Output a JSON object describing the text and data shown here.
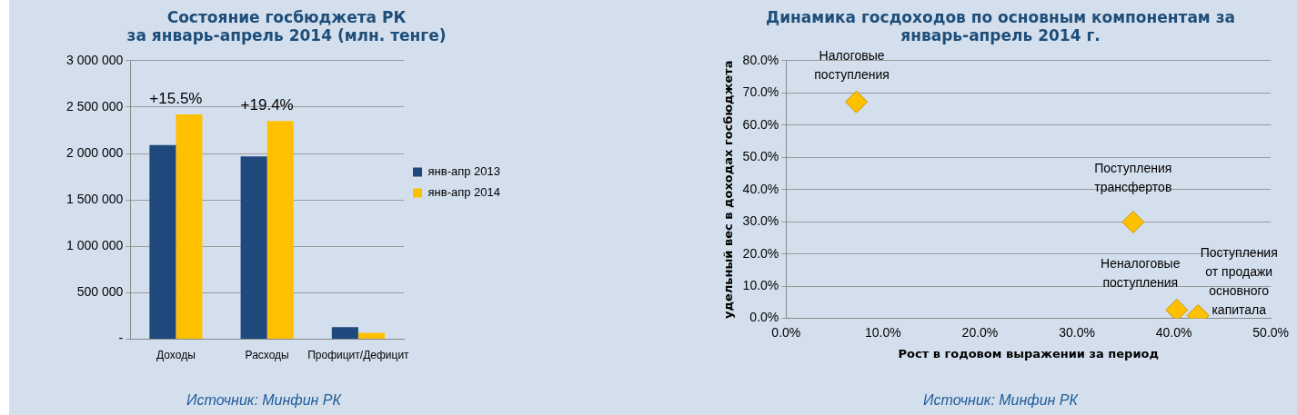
{
  "chart_data": [
    {
      "type": "bar",
      "title": "Состояние госбюджета РК\nза январь-апрель 2014 (млн. тенге)",
      "categories": [
        "Доходы",
        "Расходы",
        "Профицит/Дефицит"
      ],
      "series": [
        {
          "name": "янв-апр 2013",
          "color": "#1f497d",
          "values": [
            2090000,
            1970000,
            130000
          ]
        },
        {
          "name": "янв-апр 2014",
          "color": "#ffc000",
          "values": [
            2420000,
            2350000,
            70000
          ]
        }
      ],
      "ylim": [
        0,
        3000000
      ],
      "yticks": [
        {
          "value": 0,
          "label": "-"
        },
        {
          "value": 500000,
          "label": "500 000"
        },
        {
          "value": 1000000,
          "label": "1 000 000"
        },
        {
          "value": 1500000,
          "label": "1 500 000"
        },
        {
          "value": 2000000,
          "label": "2 000 000"
        },
        {
          "value": 2500000,
          "label": "2 500 000"
        },
        {
          "value": 3000000,
          "label": "3 000 000"
        }
      ],
      "grid": "y",
      "legend": "right",
      "annotations": [
        {
          "text": "+15.5%",
          "x": "Доходы",
          "y": 2420000
        },
        {
          "text": "+19.4%",
          "x": "Расходы",
          "y": 2350000
        },
        "Источник: Минфин РК"
      ]
    },
    {
      "type": "scatter",
      "title": "Динамика госдоходов по основным компонентам за\nянварь-апрель 2014 г.",
      "xlabel": "Рост в годовом выражении за период",
      "ylabel": "удельный вес в доходах госбюджета",
      "series": [
        {
          "name": "Налоговые поступления",
          "color": "#ffc000",
          "x": [
            7.25
          ],
          "values": [
            67.2
          ]
        },
        {
          "name": "Поступления трансфертов",
          "color": "#ffc000",
          "x": [
            35.8
          ],
          "values": [
            29.9
          ]
        },
        {
          "name": "Неналоговые поступления",
          "color": "#ffc000",
          "x": [
            40.3
          ],
          "values": [
            2.6
          ]
        },
        {
          "name": "Поступления от продажи основного капитала",
          "color": "#ffc000",
          "x": [
            42.5
          ],
          "values": [
            0.9
          ]
        }
      ],
      "xlim": [
        0,
        50
      ],
      "xticks": [
        {
          "value": 0,
          "label": "0.0%"
        },
        {
          "value": 10,
          "label": "10.0%"
        },
        {
          "value": 20,
          "label": "20.0%"
        },
        {
          "value": 30,
          "label": "30.0%"
        },
        {
          "value": 40,
          "label": "40.0%"
        },
        {
          "value": 50,
          "label": "50.0%"
        }
      ],
      "ylim": [
        0,
        80
      ],
      "yticks": [
        {
          "value": 0,
          "label": "0.0%"
        },
        {
          "value": 10,
          "label": "10.0%"
        },
        {
          "value": 20,
          "label": "20.0%"
        },
        {
          "value": 30,
          "label": "30.0%"
        },
        {
          "value": 40,
          "label": "40.0%"
        },
        {
          "value": 50,
          "label": "50.0%"
        },
        {
          "value": 60,
          "label": "60.0%"
        },
        {
          "value": 70,
          "label": "70.0%"
        },
        {
          "value": 80,
          "label": "80.0%"
        }
      ],
      "grid": "y",
      "marker": "diamond",
      "annotations": [
        "Источник: Минфин РК"
      ]
    }
  ]
}
